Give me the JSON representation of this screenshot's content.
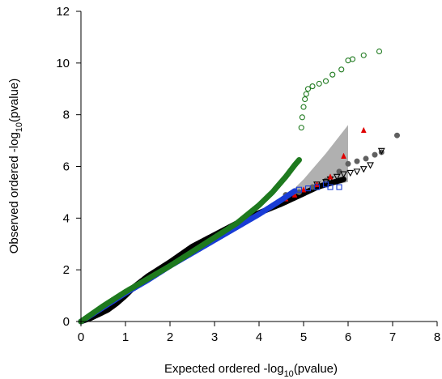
{
  "chart_data": {
    "type": "scatter",
    "title": "",
    "xlabel_parts": {
      "pre": "Expected ordered -log",
      "sub": "10",
      "post": "(pvalue)"
    },
    "ylabel_parts": {
      "pre": "Observed ordered -log",
      "sub": "10",
      "post": "(pvalue)"
    },
    "xlim": [
      0,
      8
    ],
    "ylim": [
      0,
      12
    ],
    "x_ticks": [
      "0",
      "1",
      "2",
      "3",
      "4",
      "5",
      "6",
      "7",
      "8"
    ],
    "y_ticks": [
      "0",
      "2",
      "4",
      "6",
      "8",
      "10",
      "12"
    ],
    "grid": false,
    "legend": "none",
    "confidence_band": {
      "color": "#b0b0b0",
      "x": [
        4.5,
        5.0,
        5.5,
        6.0
      ],
      "lower": [
        4.45,
        4.85,
        5.2,
        5.4
      ],
      "upper": [
        4.65,
        5.5,
        6.5,
        7.6
      ]
    },
    "series": [
      {
        "marker": "circle-filled",
        "color": "#000000",
        "x": [
          0.0,
          0.2,
          0.4,
          0.6,
          0.8,
          1.0,
          1.2,
          1.5,
          2.0,
          2.5,
          3.0,
          3.5,
          4.0,
          4.5,
          5.0,
          5.3,
          5.6,
          5.9
        ],
        "y": [
          0.0,
          0.12,
          0.28,
          0.45,
          0.7,
          1.0,
          1.35,
          1.75,
          2.3,
          2.9,
          3.35,
          3.8,
          4.2,
          4.55,
          4.95,
          5.2,
          5.35,
          5.5
        ]
      },
      {
        "marker": "circle-filled",
        "color": "#606060",
        "x": [
          4.6,
          4.9,
          5.2,
          5.5,
          5.8,
          6.0,
          6.2,
          6.4,
          6.6,
          6.75,
          7.1
        ],
        "y": [
          4.9,
          5.0,
          5.2,
          5.45,
          5.8,
          6.1,
          6.2,
          6.3,
          6.45,
          6.55,
          7.2
        ]
      },
      {
        "marker": "triangle-down-open",
        "color": "#000000",
        "x": [
          5.3,
          5.5,
          5.6,
          5.75,
          5.9,
          6.05,
          6.2,
          6.35,
          6.5,
          6.75
        ],
        "y": [
          5.3,
          5.4,
          5.5,
          5.6,
          5.7,
          5.75,
          5.8,
          5.9,
          6.05,
          6.6
        ]
      },
      {
        "marker": "triangle-up-filled",
        "color": "#e00000",
        "x": [
          4.6,
          4.8,
          5.0,
          5.3,
          5.6,
          5.9,
          6.35
        ],
        "y": [
          4.75,
          4.9,
          5.1,
          5.3,
          5.6,
          6.4,
          7.4
        ]
      },
      {
        "marker": "circle-filled",
        "color": "#1a3dd6",
        "x": [
          0.0,
          0.5,
          1.0,
          1.5,
          2.0,
          2.5,
          3.0,
          3.5,
          4.0,
          4.5,
          4.8
        ],
        "y": [
          0.0,
          0.55,
          1.1,
          1.6,
          2.15,
          2.65,
          3.15,
          3.65,
          4.15,
          4.7,
          5.05
        ]
      },
      {
        "marker": "square-open",
        "color": "#1a3dd6",
        "x": [
          4.9,
          5.1,
          5.3,
          5.5,
          5.6,
          5.8
        ],
        "y": [
          5.1,
          5.15,
          5.2,
          5.3,
          5.2,
          5.2
        ]
      },
      {
        "marker": "circle-filled",
        "color": "#1f7a1f",
        "x": [
          0.0,
          0.5,
          1.0,
          1.5,
          2.0,
          2.5,
          3.0,
          3.5,
          4.0,
          4.3,
          4.6,
          4.8,
          4.9
        ],
        "y": [
          0.0,
          0.6,
          1.15,
          1.65,
          2.15,
          2.7,
          3.25,
          3.8,
          4.5,
          5.0,
          5.6,
          6.05,
          6.25
        ]
      },
      {
        "marker": "circle-open",
        "color": "#1f7a1f",
        "x": [
          4.95,
          4.97,
          5.0,
          5.03,
          5.06,
          5.1,
          5.2,
          5.35,
          5.5,
          5.65,
          5.85,
          6.0,
          6.1,
          6.35,
          6.7
        ],
        "y": [
          7.5,
          7.9,
          8.3,
          8.6,
          8.8,
          9.0,
          9.1,
          9.2,
          9.3,
          9.55,
          9.75,
          10.1,
          10.15,
          10.3,
          10.45
        ]
      }
    ]
  }
}
